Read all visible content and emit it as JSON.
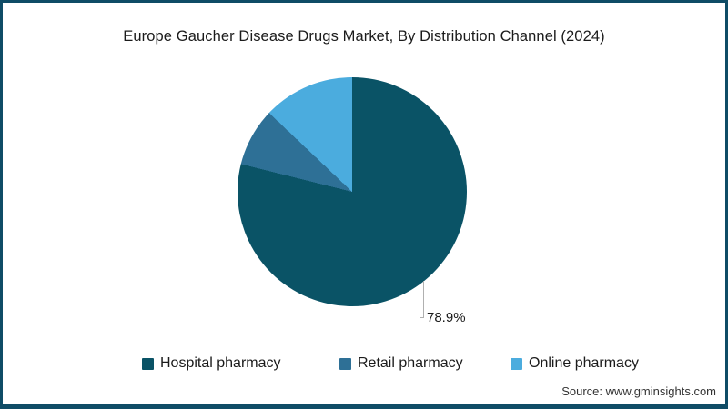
{
  "title": "Europe Gaucher Disease Drugs Market, By Distribution Channel (2024)",
  "source": "Source: www.gminsights.com",
  "theme": {
    "background": "#FFFFFF",
    "frame_border_color": "#0F4C66",
    "title_color": "#1B1B1B",
    "leader_line_color": "#B0B0B0",
    "source_color": "#333333"
  },
  "chart_data": {
    "type": "pie",
    "title": "Europe Gaucher Disease Drugs Market, By Distribution Channel (2024)",
    "categories": [
      "Hospital pharmacy",
      "Retail pharmacy",
      "Online pharmacy"
    ],
    "values": [
      78.9,
      8.2,
      12.9
    ],
    "unit": "%",
    "colors": [
      "#0A5366",
      "#2E7096",
      "#4BACDE"
    ],
    "start_angle": "12-o'clock",
    "direction": "clockwise",
    "data_labels": [
      {
        "category": "Hospital pharmacy",
        "text": "78.9%"
      }
    ],
    "legend_position": "bottom",
    "grid": false
  },
  "legend": {
    "items": [
      {
        "label": "Hospital pharmacy",
        "color": "#0A5366"
      },
      {
        "label": "Retail pharmacy",
        "color": "#2E7096"
      },
      {
        "label": "Online pharmacy",
        "color": "#4BACDE"
      }
    ]
  }
}
